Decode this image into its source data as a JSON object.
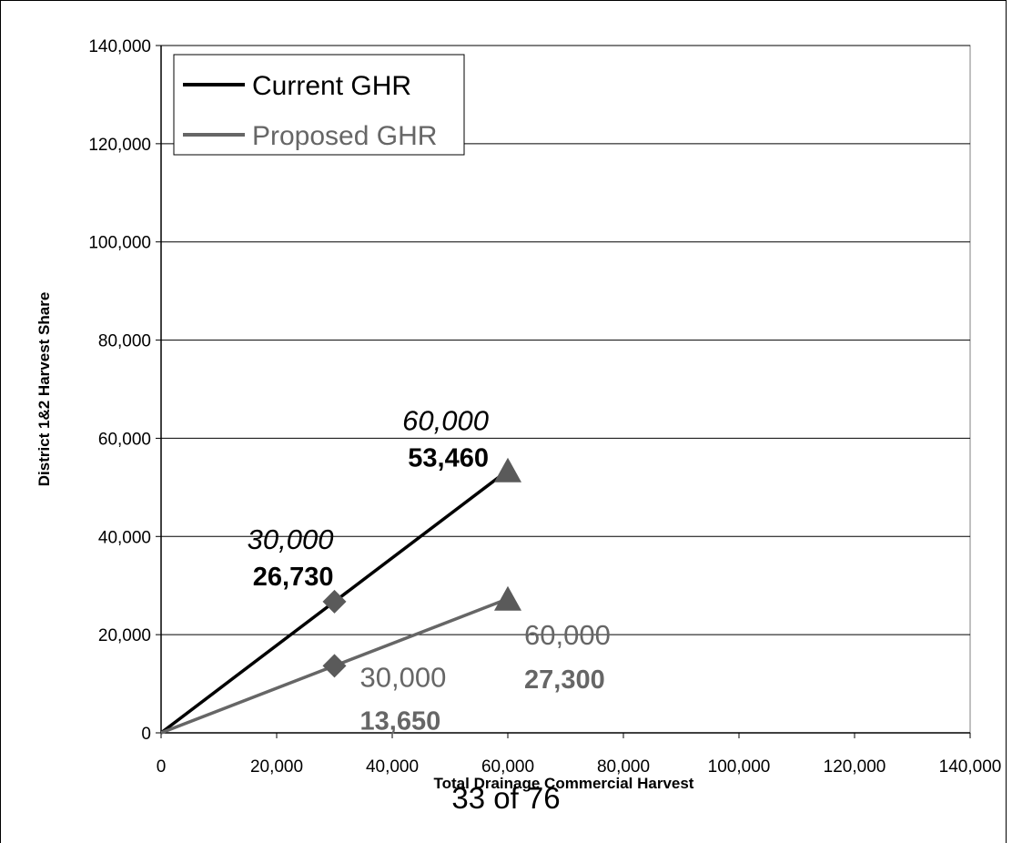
{
  "chart_data": {
    "type": "line",
    "xlabel": "Total Drainage Commercial Harvest",
    "ylabel": "District 1&2 Harvest Share",
    "xlim": [
      0,
      140000
    ],
    "ylim": [
      0,
      140000
    ],
    "x_ticks": [
      0,
      20000,
      40000,
      60000,
      80000,
      100000,
      120000,
      140000
    ],
    "x_tick_labels": [
      "0",
      "20,000",
      "40,000",
      "60,000",
      "80,000",
      "100,000",
      "120,000",
      "140,000"
    ],
    "y_ticks": [
      0,
      20000,
      40000,
      60000,
      80000,
      100000,
      120000,
      140000
    ],
    "y_tick_labels": [
      "0",
      "20,000",
      "40,000",
      "60,000",
      "80,000",
      "100,000",
      "120,000",
      "140,000"
    ],
    "grid": "horizontal",
    "legend_position": "top-left",
    "series": [
      {
        "name": "Current GHR",
        "color": "#000000",
        "x": [
          0,
          30000,
          60000
        ],
        "y": [
          0,
          26730,
          53460
        ],
        "markers": [
          {
            "x": 30000,
            "y": 26730,
            "shape": "diamond",
            "label_top": "30,000",
            "label_bottom": "26,730"
          },
          {
            "x": 60000,
            "y": 53460,
            "shape": "triangle",
            "label_top": "60,000",
            "label_bottom": "53,460"
          }
        ]
      },
      {
        "name": "Proposed GHR",
        "color": "#666666",
        "x": [
          0,
          30000,
          60000
        ],
        "y": [
          0,
          13650,
          27300
        ],
        "markers": [
          {
            "x": 30000,
            "y": 13650,
            "shape": "diamond",
            "label_top": "30,000",
            "label_bottom": "13,650"
          },
          {
            "x": 60000,
            "y": 27300,
            "shape": "triangle",
            "label_top": "60,000",
            "label_bottom": "27,300"
          }
        ]
      }
    ]
  },
  "footer": {
    "page_number": "33 of 76"
  }
}
